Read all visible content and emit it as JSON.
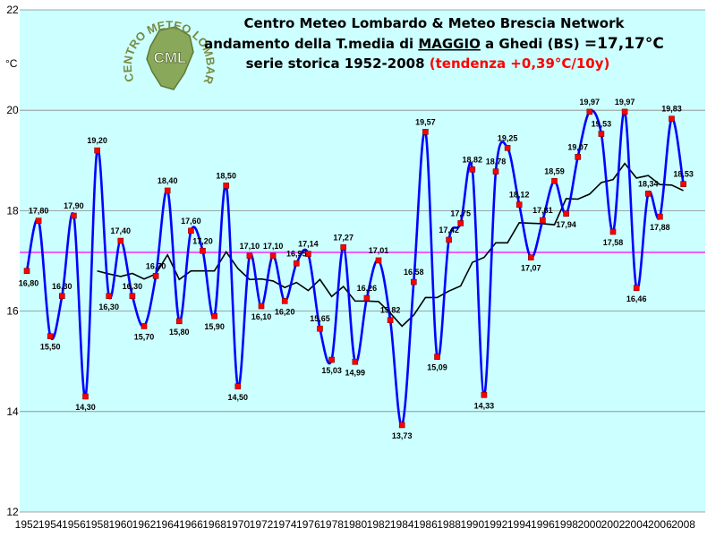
{
  "chart_data": {
    "type": "line",
    "title_line1": "Centro Meteo Lombardo & Meteo Brescia Network",
    "title_line2_pre": "andamento della T.media di ",
    "title_line2_month": "MAGGIO",
    "title_line2_mid": " a Ghedi (BS) ",
    "title_line2_value": "=17,17°C",
    "title_line3_pre": "serie storica 1952-2008 ",
    "title_line3_trend": "(tendenza +0,39°C/10y)",
    "ylabel": "°C",
    "ylim": [
      12,
      22
    ],
    "yticks": [
      12,
      14,
      16,
      18,
      20,
      22
    ],
    "xticks": [
      "1952",
      "1954",
      "1956",
      "1958",
      "1960",
      "1962",
      "1964",
      "1966",
      "1968",
      "1970",
      "1972",
      "1974",
      "1976",
      "1978",
      "1980",
      "1982",
      "1984",
      "1986",
      "1988",
      "1990",
      "1992",
      "1994",
      "1996",
      "1998",
      "2000",
      "2002",
      "2004",
      "2006",
      "2008"
    ],
    "mean_value": 17.17,
    "logo": {
      "text": "CENTRO METEO LOMBARDO",
      "badge": "CML"
    },
    "colors": {
      "series": "#0000ff",
      "moving_average": "#000000",
      "mean": "#ff00ff",
      "marker": "#ff0000",
      "background": "#ccffff",
      "trend_text": "#ff0000"
    },
    "series": [
      {
        "values": [
          [
            1952,
            16.8,
            "16,80"
          ],
          [
            1953,
            17.8,
            "17,80"
          ],
          [
            1954,
            15.5,
            "15,50"
          ],
          [
            1955,
            16.3,
            "16,30"
          ],
          [
            1956,
            17.9,
            "17,90"
          ],
          [
            1957,
            14.3,
            "14,30"
          ],
          [
            1958,
            19.2,
            "19,20"
          ],
          [
            1959,
            16.3,
            "16,30"
          ],
          [
            1960,
            17.4,
            "17,40"
          ],
          [
            1961,
            16.3,
            "16,30"
          ],
          [
            1962,
            15.7,
            "15,70"
          ],
          [
            1963,
            16.7,
            "16,70"
          ],
          [
            1964,
            18.4,
            "18,40"
          ],
          [
            1965,
            15.8,
            "15,80"
          ],
          [
            1966,
            17.6,
            "17,60"
          ],
          [
            1967,
            17.2,
            "17,20"
          ],
          [
            1968,
            15.9,
            "15,90"
          ],
          [
            1969,
            18.5,
            "18,50"
          ],
          [
            1970,
            14.5,
            "14,50"
          ],
          [
            1971,
            17.1,
            "17,10"
          ],
          [
            1972,
            16.1,
            "16,10"
          ],
          [
            1973,
            17.1,
            "17,10"
          ],
          [
            1974,
            16.2,
            "16,20"
          ],
          [
            1975,
            16.95,
            "16,95"
          ],
          [
            1976,
            17.14,
            "17,14"
          ],
          [
            1977,
            15.65,
            "15,65"
          ],
          [
            1978,
            15.03,
            "15,03"
          ],
          [
            1979,
            17.27,
            "17,27"
          ],
          [
            1980,
            14.99,
            "14,99"
          ],
          [
            1981,
            16.26,
            "16,26"
          ],
          [
            1982,
            17.01,
            "17,01"
          ],
          [
            1983,
            15.82,
            "15,82"
          ],
          [
            1984,
            13.73,
            "13,73"
          ],
          [
            1985,
            16.58,
            "16,58"
          ],
          [
            1986,
            19.57,
            "19,57"
          ],
          [
            1987,
            15.09,
            "15,09"
          ],
          [
            1988,
            17.42,
            "17,42"
          ],
          [
            1989,
            17.75,
            "17,75"
          ],
          [
            1990,
            18.82,
            "18,82"
          ],
          [
            1991,
            14.33,
            "14,33"
          ],
          [
            1992,
            18.78,
            "18,78"
          ],
          [
            1993,
            19.25,
            "19,25"
          ],
          [
            1994,
            18.12,
            "18,12"
          ],
          [
            1995,
            17.07,
            "17,07"
          ],
          [
            1996,
            17.81,
            "17,81"
          ],
          [
            1997,
            18.59,
            "18,59"
          ],
          [
            1998,
            17.94,
            "17,94"
          ],
          [
            1999,
            19.07,
            "19,07"
          ],
          [
            2000,
            19.97,
            "19,97"
          ],
          [
            2001,
            19.53,
            "19,53"
          ],
          [
            2002,
            17.58,
            "17,58"
          ],
          [
            2003,
            19.97,
            "19,97"
          ],
          [
            2004,
            16.46,
            "16,46"
          ],
          [
            2005,
            18.34,
            "18,34"
          ],
          [
            2006,
            17.88,
            "17,88"
          ],
          [
            2007,
            19.83,
            "19,83"
          ],
          [
            2008,
            18.53,
            "18,53"
          ]
        ]
      },
      {
        "values": [
          [
            1958,
            16.8
          ],
          [
            1959,
            16.74
          ],
          [
            1960,
            16.69
          ],
          [
            1961,
            16.75
          ],
          [
            1962,
            16.64
          ],
          [
            1963,
            16.74
          ],
          [
            1964,
            17.12
          ],
          [
            1965,
            16.63
          ],
          [
            1966,
            16.8
          ],
          [
            1967,
            16.8
          ],
          [
            1968,
            16.8
          ],
          [
            1969,
            17.18
          ],
          [
            1970,
            16.85
          ],
          [
            1971,
            16.63
          ],
          [
            1972,
            16.64
          ],
          [
            1973,
            16.6
          ],
          [
            1974,
            16.47
          ],
          [
            1975,
            16.57
          ],
          [
            1976,
            16.41
          ],
          [
            1977,
            16.63
          ],
          [
            1978,
            16.29
          ],
          [
            1979,
            16.49
          ],
          [
            1980,
            16.2
          ],
          [
            1981,
            16.2
          ],
          [
            1982,
            16.19
          ],
          [
            1983,
            15.96
          ],
          [
            1984,
            15.7
          ],
          [
            1985,
            15.92
          ],
          [
            1986,
            16.27
          ],
          [
            1987,
            16.27
          ],
          [
            1988,
            16.4
          ],
          [
            1989,
            16.5
          ],
          [
            1990,
            16.97
          ],
          [
            1991,
            17.07
          ],
          [
            1992,
            17.36
          ],
          [
            1993,
            17.36
          ],
          [
            1994,
            17.76
          ],
          [
            1995,
            17.75
          ],
          [
            1996,
            17.74
          ],
          [
            1997,
            17.72
          ],
          [
            1998,
            18.24
          ],
          [
            1999,
            18.23
          ],
          [
            2000,
            18.33
          ],
          [
            2001,
            18.56
          ],
          [
            2002,
            18.62
          ],
          [
            2003,
            18.94
          ],
          [
            2004,
            18.65
          ],
          [
            2005,
            18.7
          ],
          [
            2006,
            18.52
          ],
          [
            2007,
            18.51
          ],
          [
            2008,
            18.4
          ]
        ]
      }
    ]
  }
}
